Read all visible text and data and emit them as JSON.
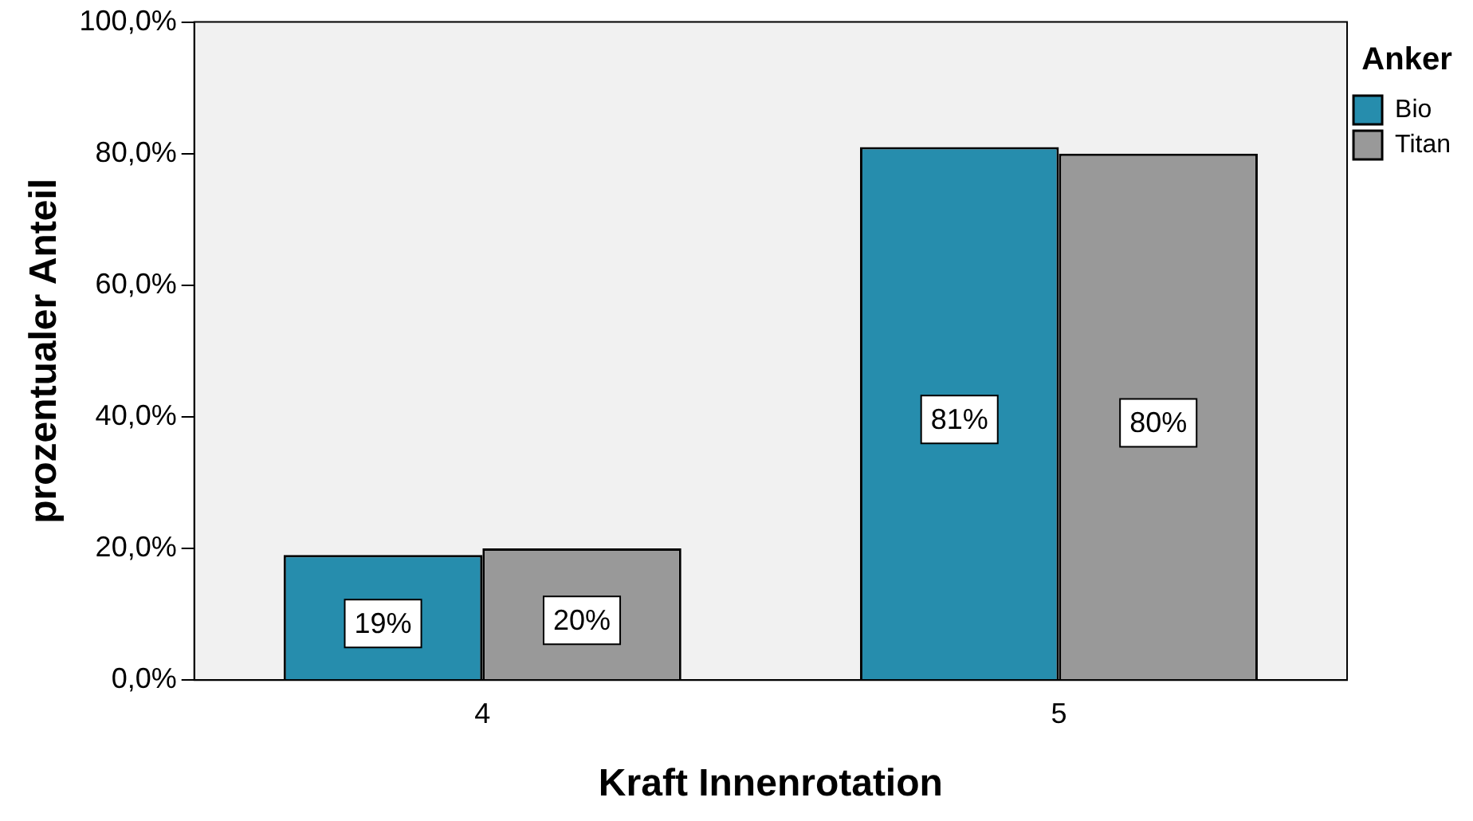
{
  "chart_data": {
    "type": "bar",
    "xlabel": "Kraft Innenrotation",
    "ylabel": "prozentualer Anteil",
    "legend_title": "Anker",
    "categories": [
      "4",
      "5"
    ],
    "series": [
      {
        "name": "Bio",
        "color": "#268dad",
        "values": [
          19,
          81
        ],
        "value_labels": [
          "19%",
          "81%"
        ]
      },
      {
        "name": "Titan",
        "color": "#999999",
        "values": [
          20,
          80
        ],
        "value_labels": [
          "20%",
          "80%"
        ]
      }
    ],
    "ylim": [
      0,
      100
    ],
    "yticks": [
      {
        "value": 0,
        "label": "0,0%"
      },
      {
        "value": 20,
        "label": "20,0%"
      },
      {
        "value": 40,
        "label": "40,0%"
      },
      {
        "value": 60,
        "label": "60,0%"
      },
      {
        "value": 80,
        "label": "80,0%"
      },
      {
        "value": 100,
        "label": "100,0%"
      }
    ],
    "grid": false,
    "legend": "top right"
  }
}
